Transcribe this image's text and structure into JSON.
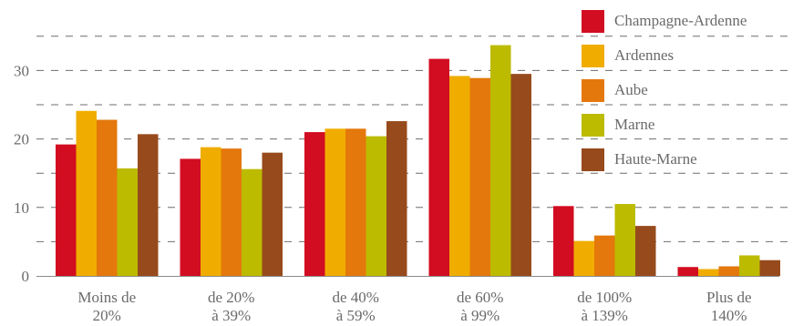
{
  "chart_data": {
    "type": "bar",
    "title": "",
    "xlabel": "",
    "ylabel": "",
    "categories": [
      [
        "Moins de",
        "20%"
      ],
      [
        "de 20%",
        "à 39%"
      ],
      [
        "de 40%",
        "à 59%"
      ],
      [
        "de 60%",
        "à 99%"
      ],
      [
        "de 100%",
        "à 139%"
      ],
      [
        "Plus de",
        "140%"
      ]
    ],
    "series": [
      {
        "name": "Champagne-Ardenne",
        "color": "#d20d21",
        "values": [
          19.2,
          17.1,
          21.0,
          31.7,
          10.2,
          1.3
        ]
      },
      {
        "name": "Ardennes",
        "color": "#f0ad00",
        "values": [
          24.1,
          18.8,
          21.5,
          29.2,
          5.1,
          1.0
        ]
      },
      {
        "name": "Aube",
        "color": "#e4780c",
        "values": [
          22.8,
          18.6,
          21.5,
          28.9,
          5.9,
          1.4
        ]
      },
      {
        "name": "Marne",
        "color": "#bcbb00",
        "values": [
          15.7,
          15.6,
          20.4,
          33.7,
          10.5,
          3.0
        ]
      },
      {
        "name": "Haute-Marne",
        "color": "#974a1c",
        "values": [
          20.7,
          18.0,
          22.6,
          29.5,
          7.3,
          2.3
        ]
      }
    ],
    "ylim": [
      0,
      36
    ],
    "yticks": [
      0,
      10,
      20,
      30
    ],
    "grid": true,
    "legend_position": "top-right"
  }
}
